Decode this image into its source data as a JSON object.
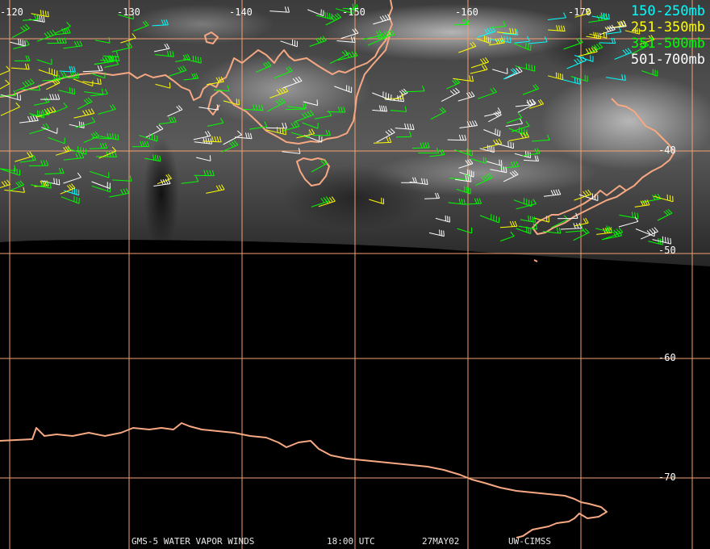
{
  "legend": [
    {
      "label": "150-250mb",
      "color": "#00ffff"
    },
    {
      "label": "251-350mb",
      "color": "#ffff00"
    },
    {
      "label": "351-500mb",
      "color": "#00ff00"
    },
    {
      "label": "501-700mb",
      "color": "#ffffff"
    }
  ],
  "grid": {
    "lon_labels": [
      "-120",
      "-130",
      "-140",
      "-150",
      "-160",
      "-170"
    ],
    "lat_labels": [
      "-40",
      "-50",
      "-60",
      "-70"
    ]
  },
  "footer": {
    "product": "GMS-5 WATER VAPOR WINDS",
    "time": "18:00 UTC",
    "date": "27MAY02",
    "source": "UW-CIMSS"
  },
  "colors": {
    "coastline": "#f5a882",
    "grid": "#f4a070",
    "background": "#000000"
  }
}
